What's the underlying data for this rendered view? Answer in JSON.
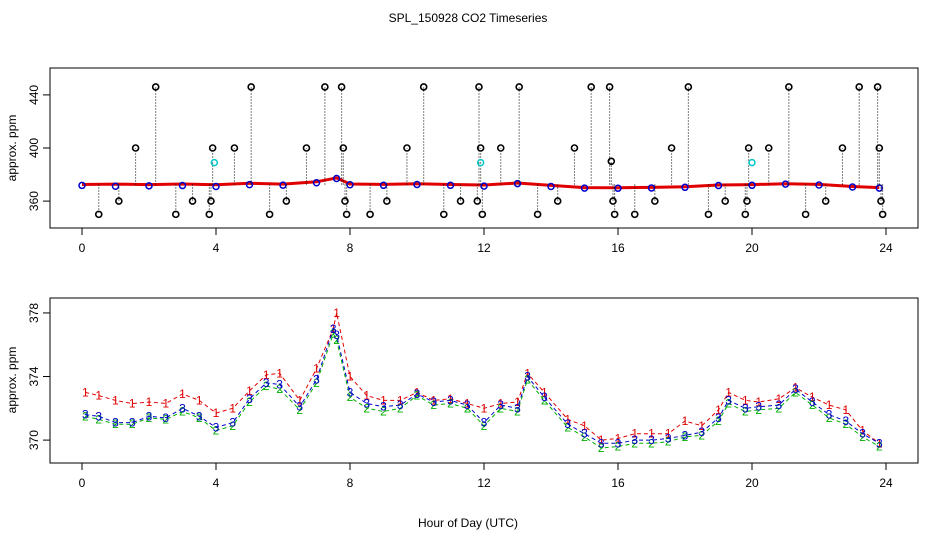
{
  "title": "SPL_150928  CO2 Timeseries",
  "xlabel": "Hour of Day (UTC)",
  "colors": {
    "series1": "#e00000",
    "series2": "#00b000",
    "series3": "#0000cc",
    "flag": "#000000",
    "alt": "#00c8c8"
  },
  "chart_data": [
    {
      "type": "scatter",
      "panel": "top",
      "ylabel": "approx. ppm",
      "xlim": [
        0,
        24
      ],
      "ylim": [
        345,
        455
      ],
      "x_ticks": [
        0,
        4,
        8,
        12,
        16,
        20,
        24
      ],
      "y_ticks": [
        360,
        400,
        440
      ],
      "grid": false,
      "series": [
        {
          "id": "s1",
          "marker": "line",
          "color": "#e00000",
          "x": [
            0,
            1,
            2,
            3,
            4,
            5,
            6,
            7,
            7.6,
            8,
            9,
            10,
            11,
            12,
            13,
            14,
            15,
            16,
            17,
            18,
            19,
            20,
            21,
            22,
            23,
            23.8
          ],
          "values": [
            372.5,
            372.8,
            372.4,
            372.9,
            372.3,
            373.5,
            372.8,
            374.5,
            377.5,
            372.9,
            372.6,
            373.1,
            372.5,
            372.1,
            373.6,
            371.8,
            370.2,
            370.1,
            370.3,
            370.8,
            372.1,
            372.4,
            373.1,
            372.6,
            371.0,
            370.2
          ]
        },
        {
          "id": "s3",
          "marker": "o",
          "color": "#0000cc",
          "x": [
            0,
            1,
            2,
            3,
            4,
            5,
            6,
            7,
            7.6,
            8,
            9,
            10,
            11,
            12,
            13,
            14,
            15,
            16,
            17,
            18,
            19,
            20,
            21,
            22,
            23,
            23.8
          ],
          "values": [
            371.8,
            371.2,
            371.5,
            371.7,
            371.0,
            372.4,
            372.0,
            373.8,
            377.0,
            372.3,
            371.9,
            372.5,
            371.9,
            371.3,
            373.2,
            371.0,
            369.8,
            369.7,
            369.9,
            370.4,
            371.7,
            371.9,
            372.8,
            372.1,
            370.6,
            369.8
          ]
        },
        {
          "id": "flags",
          "marker": "o",
          "color": "#000000",
          "x": [
            0.5,
            1.1,
            1.6,
            2.2,
            2.8,
            3.3,
            3.8,
            3.85,
            3.9,
            4.55,
            5.05,
            5.6,
            6.1,
            6.7,
            7.25,
            7.75,
            7.8,
            7.85,
            7.9,
            8.6,
            9.1,
            9.7,
            10.2,
            10.8,
            11.3,
            11.8,
            11.85,
            11.9,
            11.95,
            12.5,
            13.05,
            13.6,
            14.2,
            14.7,
            15.2,
            15.75,
            15.8,
            15.85,
            15.9,
            16.5,
            17.1,
            17.6,
            18.1,
            18.7,
            19.2,
            19.8,
            19.85,
            19.9,
            20.5,
            21.1,
            21.6,
            22.2,
            22.7,
            23.2,
            23.75,
            23.8,
            23.85,
            23.9
          ],
          "values": [
            350,
            360,
            400,
            446,
            350,
            360,
            350,
            360,
            400,
            400,
            446,
            350,
            360,
            400,
            446,
            446,
            400,
            360,
            350,
            350,
            360,
            400,
            446,
            350,
            360,
            360,
            446,
            400,
            350,
            400,
            446,
            350,
            360,
            400,
            446,
            446,
            390,
            360,
            350,
            350,
            360,
            400,
            446,
            350,
            360,
            350,
            360,
            400,
            400,
            446,
            350,
            360,
            400,
            446,
            446,
            400,
            360,
            350
          ]
        },
        {
          "id": "alt",
          "marker": "o",
          "color": "#00c8c8",
          "x": [
            3.95,
            11.9,
            20.0
          ],
          "values": [
            389,
            389,
            389
          ]
        }
      ]
    },
    {
      "type": "scatter",
      "panel": "bottom",
      "ylabel": "approx. ppm",
      "xlim": [
        0,
        24
      ],
      "ylim": [
        369,
        378.5
      ],
      "x_ticks": [
        0,
        4,
        8,
        12,
        16,
        20,
        24
      ],
      "y_ticks": [
        370,
        374,
        378
      ],
      "grid": false,
      "series": [
        {
          "id": "1",
          "marker": "1",
          "color": "#e00000",
          "x": [
            0.1,
            0.5,
            1,
            1.5,
            2,
            2.5,
            3,
            3.5,
            4,
            4.5,
            5,
            5.5,
            5.9,
            6.5,
            7,
            7.5,
            7.6,
            8,
            8.5,
            9,
            9.5,
            10,
            10.5,
            11,
            11.5,
            12,
            12.5,
            13,
            13.3,
            13.8,
            14.5,
            15,
            15.5,
            16,
            16.5,
            17,
            17.5,
            18,
            18.5,
            19,
            19.3,
            19.8,
            20.2,
            20.8,
            21.3,
            21.8,
            22.3,
            22.8,
            23.3,
            23.8
          ],
          "values": [
            373.0,
            372.8,
            372.5,
            372.3,
            372.4,
            372.3,
            372.9,
            372.5,
            371.7,
            372.0,
            373.1,
            374.1,
            374.2,
            372.5,
            374.5,
            377.0,
            378.0,
            374.0,
            372.8,
            372.5,
            372.5,
            373.0,
            372.5,
            372.6,
            372.3,
            372.0,
            372.3,
            372.4,
            374.2,
            373.0,
            371.3,
            370.9,
            370.0,
            370.1,
            370.4,
            370.4,
            370.4,
            371.2,
            370.9,
            371.9,
            373.0,
            372.5,
            372.4,
            372.6,
            373.3,
            372.7,
            372.2,
            371.9,
            370.6,
            369.8
          ]
        },
        {
          "id": "2",
          "marker": "2",
          "color": "#00b000",
          "x": [
            0.1,
            0.5,
            1,
            1.5,
            2,
            2.5,
            3,
            3.5,
            4,
            4.5,
            5,
            5.5,
            5.9,
            6.5,
            7,
            7.5,
            7.6,
            8,
            8.5,
            9,
            9.5,
            10,
            10.5,
            11,
            11.5,
            12,
            12.5,
            13,
            13.3,
            13.8,
            14.5,
            15,
            15.5,
            16,
            16.5,
            17,
            17.5,
            18,
            18.5,
            19,
            19.3,
            19.8,
            20.2,
            20.8,
            21.3,
            21.8,
            22.3,
            22.8,
            23.3,
            23.8
          ],
          "values": [
            371.5,
            371.3,
            371.0,
            371.0,
            371.4,
            371.3,
            371.8,
            371.4,
            370.6,
            370.9,
            372.4,
            373.4,
            373.2,
            371.9,
            373.6,
            376.7,
            376.3,
            372.7,
            372.0,
            371.8,
            372.0,
            372.8,
            372.2,
            372.3,
            372.0,
            370.9,
            372.0,
            371.8,
            373.8,
            372.5,
            370.8,
            370.2,
            369.5,
            369.6,
            369.8,
            369.8,
            369.9,
            370.2,
            370.3,
            371.2,
            372.3,
            371.8,
            371.9,
            372.0,
            373.0,
            372.2,
            371.4,
            371.0,
            370.2,
            369.6
          ]
        },
        {
          "id": "3",
          "marker": "3",
          "color": "#0000cc",
          "x": [
            0.1,
            0.5,
            1,
            1.5,
            2,
            2.5,
            3,
            3.5,
            4,
            4.5,
            5,
            5.5,
            5.9,
            6.5,
            7,
            7.5,
            7.6,
            8,
            8.5,
            9,
            9.5,
            10,
            10.5,
            11,
            11.5,
            12,
            12.5,
            13,
            13.3,
            13.8,
            14.5,
            15,
            15.5,
            16,
            16.5,
            17,
            17.5,
            18,
            18.5,
            19,
            19.3,
            19.8,
            20.2,
            20.8,
            21.3,
            21.8,
            22.3,
            22.8,
            23.3,
            23.8
          ],
          "values": [
            371.6,
            371.5,
            371.1,
            371.1,
            371.5,
            371.4,
            372.0,
            371.5,
            370.8,
            371.1,
            372.6,
            373.6,
            373.5,
            372.1,
            373.8,
            377.0,
            376.6,
            373.0,
            372.3,
            372.1,
            372.2,
            372.9,
            372.4,
            372.5,
            372.2,
            371.1,
            372.2,
            372.0,
            374.0,
            372.7,
            371.0,
            370.4,
            369.8,
            369.8,
            370.0,
            370.0,
            370.1,
            370.3,
            370.5,
            371.4,
            372.5,
            372.0,
            372.1,
            372.2,
            373.2,
            372.4,
            371.6,
            371.2,
            370.4,
            369.8
          ]
        }
      ]
    }
  ]
}
